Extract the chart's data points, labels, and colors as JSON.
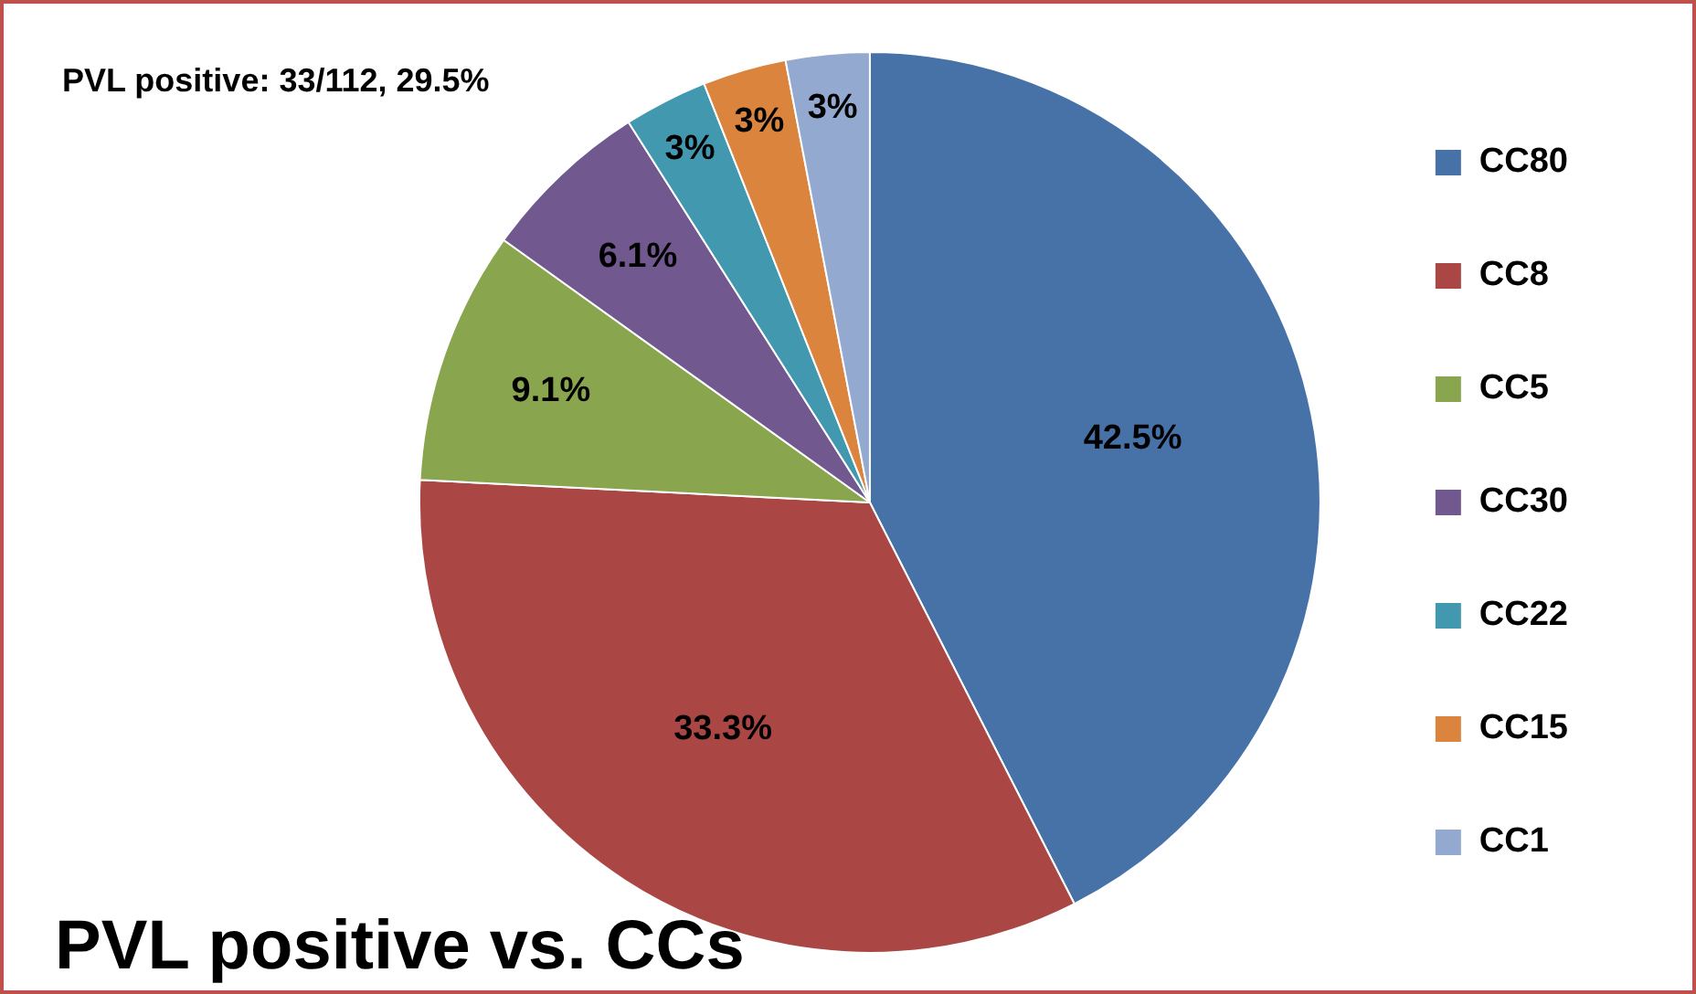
{
  "chart_data": {
    "type": "pie",
    "title": "PVL positive vs. CCs",
    "annotations": [
      "PVL positive: 33/112, 29.5%"
    ],
    "categories": [
      "CC80",
      "CC8",
      "CC5",
      "CC30",
      "CC22",
      "CC15",
      "CC1"
    ],
    "values": [
      42.5,
      33.3,
      9.1,
      6.1,
      3,
      3,
      3
    ],
    "value_labels": [
      "42.5%",
      "33.3%",
      "9.1%",
      "6.1%",
      "3%",
      "3%",
      "3%"
    ],
    "colors": [
      "#4672a8",
      "#aa4644",
      "#89a54e",
      "#71588f",
      "#4198af",
      "#db843d",
      "#93a9cf"
    ],
    "legend": "right"
  }
}
